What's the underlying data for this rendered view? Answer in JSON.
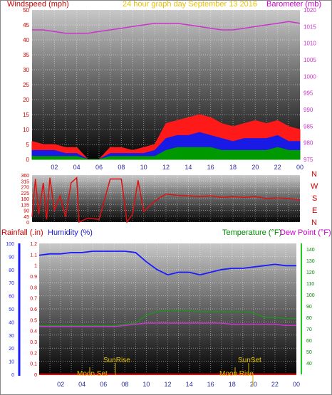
{
  "header": {
    "wind_title": "Windspeed (mph)",
    "graph_title": "24 hour graph day   September 13 2016",
    "baro_title": "Barometer (mb)",
    "compass": [
      "N",
      "W",
      "S",
      "E",
      "N"
    ]
  },
  "lower_header": {
    "rain_title": "Rainfall (.in)",
    "humidity_title": "Humidity (%)",
    "temp_title": "Temperature (°F)",
    "dew_title": "Dew Point (°F)"
  },
  "annotations": {
    "sunrise": "SunRise",
    "sunset": "SunSet",
    "moonset": "Moon Set",
    "moonrise": "Moon Rise"
  },
  "colors": {
    "wind_avg": "#1a1ae6",
    "wind_gust": "#ff1a1a",
    "wind_low": "#009900",
    "barometer": "#cc33cc",
    "direction": "#e01010",
    "humidity": "#1a1aff",
    "temperature": "#1f8f1f",
    "dewpoint": "#cc33cc",
    "rain": "#ff0000",
    "axis_left": "#cc0000",
    "axis_temp": "#008800"
  },
  "chart_data": [
    {
      "type": "line",
      "name": "wind-barometer",
      "x_ticks": [
        "02",
        "04",
        "06",
        "08",
        "10",
        "12",
        "14",
        "16",
        "18",
        "20",
        "22",
        "00"
      ],
      "ylim": [
        0,
        50
      ],
      "yticks": [
        0,
        5,
        10,
        15,
        20,
        25,
        30,
        35,
        40,
        45,
        50
      ],
      "y2lim": [
        975,
        1020
      ],
      "y2ticks": [
        975,
        980,
        985,
        990,
        995,
        1000,
        1005,
        1010,
        1015,
        1020
      ],
      "x_hours": [
        0,
        1,
        2,
        3,
        4,
        5,
        6,
        7,
        8,
        9,
        10,
        11,
        12,
        13,
        14,
        15,
        16,
        17,
        18,
        19,
        20,
        21,
        22,
        23,
        24
      ],
      "series": [
        {
          "key": "gust",
          "values": [
            6,
            5,
            5,
            4,
            4,
            0,
            0,
            4,
            4,
            3,
            4,
            5,
            12,
            13,
            14,
            15,
            14,
            12,
            11,
            12,
            13,
            12,
            13,
            11,
            10
          ]
        },
        {
          "key": "avg",
          "values": [
            3,
            3,
            3,
            2,
            2,
            0,
            0,
            2,
            2,
            2,
            2,
            3,
            7,
            8,
            8,
            9,
            8,
            7,
            6,
            7,
            7,
            7,
            8,
            6,
            6
          ]
        },
        {
          "key": "low",
          "values": [
            1,
            1,
            1,
            1,
            1,
            0,
            0,
            1,
            1,
            1,
            1,
            1,
            3,
            4,
            4,
            4,
            4,
            3,
            3,
            3,
            3,
            3,
            4,
            3,
            3
          ]
        },
        {
          "key": "barometer",
          "values": [
            1014,
            1014,
            1013.5,
            1013,
            1013,
            1013,
            1013.5,
            1014,
            1014.5,
            1015,
            1015.5,
            1016,
            1016,
            1016,
            1015.5,
            1015,
            1014.5,
            1014,
            1014,
            1014.5,
            1015,
            1015.5,
            1016,
            1016.5,
            1016
          ]
        }
      ]
    },
    {
      "type": "line",
      "name": "wind-direction",
      "ylim": [
        0,
        360
      ],
      "yticks": [
        0,
        45,
        90,
        135,
        180,
        225,
        270,
        315,
        360
      ],
      "x_hours": [
        0,
        0.3,
        0.6,
        1,
        1.3,
        1.6,
        2,
        2.5,
        3,
        3.5,
        4,
        4.2,
        5,
        6,
        7,
        8,
        8.5,
        9,
        9.5,
        10,
        10.5,
        11,
        11.5,
        12,
        13,
        14,
        15,
        16,
        17,
        18,
        19,
        20,
        21,
        22,
        23,
        24
      ],
      "values": [
        40,
        330,
        60,
        300,
        20,
        340,
        90,
        200,
        40,
        300,
        340,
        0,
        30,
        20,
        330,
        330,
        0,
        60,
        320,
        80,
        120,
        160,
        190,
        215,
        205,
        200,
        195,
        200,
        190,
        195,
        190,
        195,
        180,
        185,
        180,
        170
      ]
    },
    {
      "type": "line",
      "name": "humidity-temperature",
      "x_ticks": [
        "02",
        "04",
        "06",
        "08",
        "10",
        "12",
        "14",
        "16",
        "18",
        "20",
        "22",
        "00"
      ],
      "rain_ylim": [
        0,
        1.2
      ],
      "rain_yticks": [
        0,
        0.1,
        0.2,
        0.3,
        0.4,
        0.5,
        0.6,
        0.7,
        0.8,
        0.9,
        1,
        1.1,
        1.2
      ],
      "humidity_ylim": [
        0,
        100
      ],
      "humidity_yticks": [
        0,
        10,
        20,
        30,
        40,
        50,
        60,
        70,
        80,
        90,
        100
      ],
      "temp_ylim": [
        30,
        145
      ],
      "temp_yticks": [
        40,
        50,
        60,
        70,
        80,
        90,
        100,
        110,
        120,
        130,
        140
      ],
      "x_hours": [
        0,
        1,
        2,
        3,
        4,
        5,
        6,
        7,
        8,
        9,
        10,
        11,
        12,
        13,
        14,
        15,
        16,
        17,
        18,
        19,
        20,
        21,
        22,
        23,
        24
      ],
      "series": [
        {
          "key": "humidity",
          "values": [
            91,
            92,
            92,
            93,
            93,
            94,
            94,
            94,
            94,
            93,
            86,
            80,
            76,
            78,
            78,
            76,
            78,
            80,
            81,
            81,
            82,
            83,
            84,
            83,
            83
          ]
        },
        {
          "key": "temperature",
          "values": [
            73,
            73,
            73,
            73,
            73,
            73,
            73,
            73,
            74,
            75,
            82,
            85,
            86,
            86,
            86,
            85,
            85,
            85,
            85,
            85,
            84,
            80,
            80,
            79,
            79
          ]
        },
        {
          "key": "dewpoint",
          "values": [
            72,
            72,
            72,
            72,
            72,
            72,
            72,
            72,
            73,
            74,
            75,
            75,
            75,
            75,
            75,
            75,
            75,
            75,
            74,
            74,
            74,
            74,
            74,
            73,
            73
          ]
        },
        {
          "key": "rain",
          "values": [
            0,
            0,
            0,
            0,
            0,
            0,
            0,
            0,
            0,
            0,
            0,
            0,
            0,
            0,
            0,
            0,
            0,
            0,
            0,
            0,
            0,
            0,
            0,
            0,
            0
          ]
        }
      ]
    }
  ]
}
